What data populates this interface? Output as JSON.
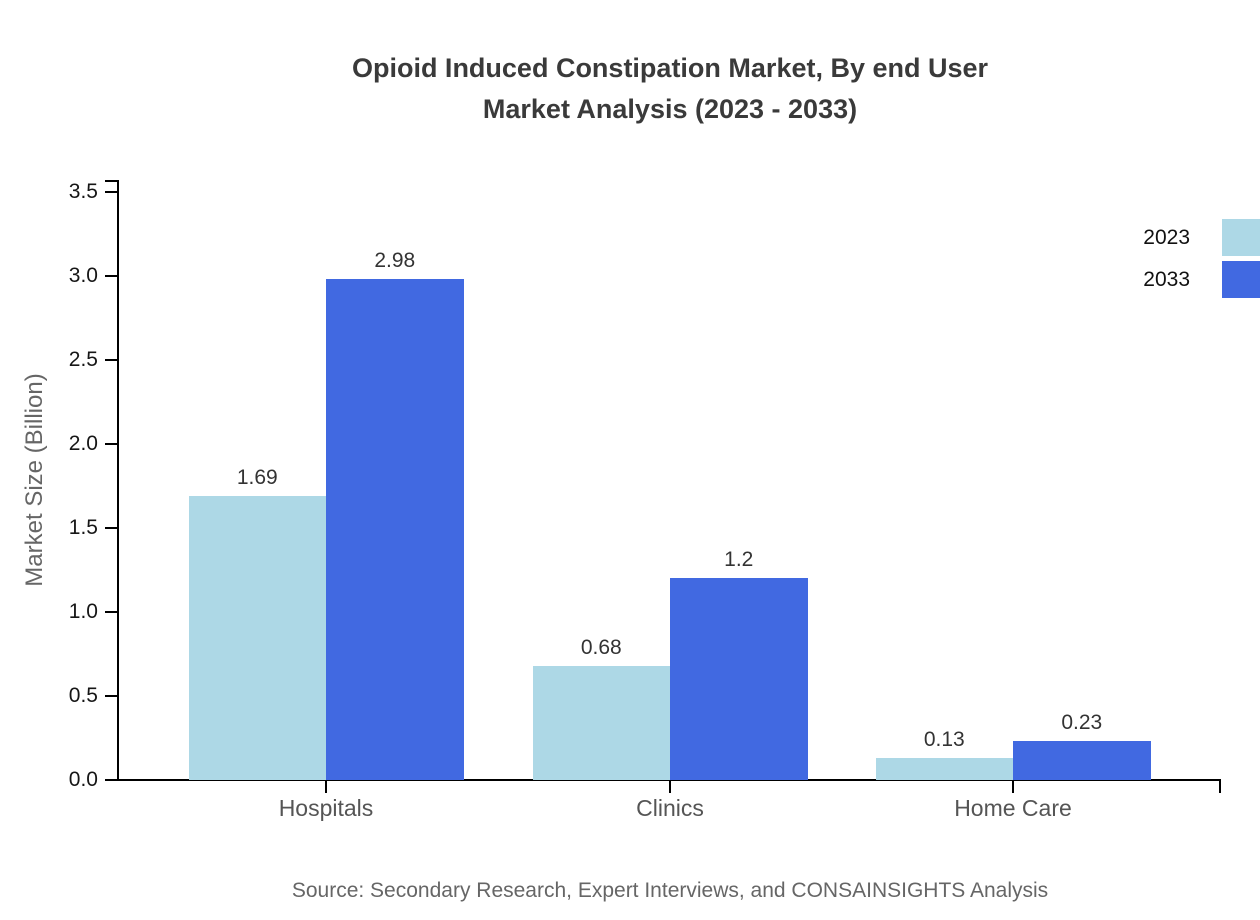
{
  "title": {
    "line1": "Opioid Induced Constipation Market, By end User",
    "line2": "Market Analysis (2023 - 2033)"
  },
  "source": "Source: Secondary Research, Expert Interviews, and CONSAINSIGHTS Analysis",
  "chart_data": {
    "type": "bar",
    "title": "Opioid Induced Constipation Market, By end User Market Analysis (2023 - 2033)",
    "categories": [
      "Hospitals",
      "Clinics",
      "Home Care"
    ],
    "series": [
      {
        "name": "2023",
        "color": "#ADD8E6",
        "values": [
          1.69,
          0.68,
          0.13
        ]
      },
      {
        "name": "2033",
        "color": "#4169E1",
        "values": [
          2.98,
          1.2,
          0.23
        ]
      }
    ],
    "xlabel": "",
    "ylabel": "Market Size (Billion)",
    "yticks": [
      "0.0",
      "0.5",
      "1.0",
      "1.5",
      "2.0",
      "2.5",
      "3.0",
      "3.5"
    ],
    "ylim": [
      0,
      3.5
    ],
    "grid": false,
    "legend_position": "top-right",
    "value_labels_shown": true,
    "axis_color": "#000000",
    "tick_label_color": "#161616",
    "category_label_color": "#555555",
    "value_label_color": "#333333"
  }
}
